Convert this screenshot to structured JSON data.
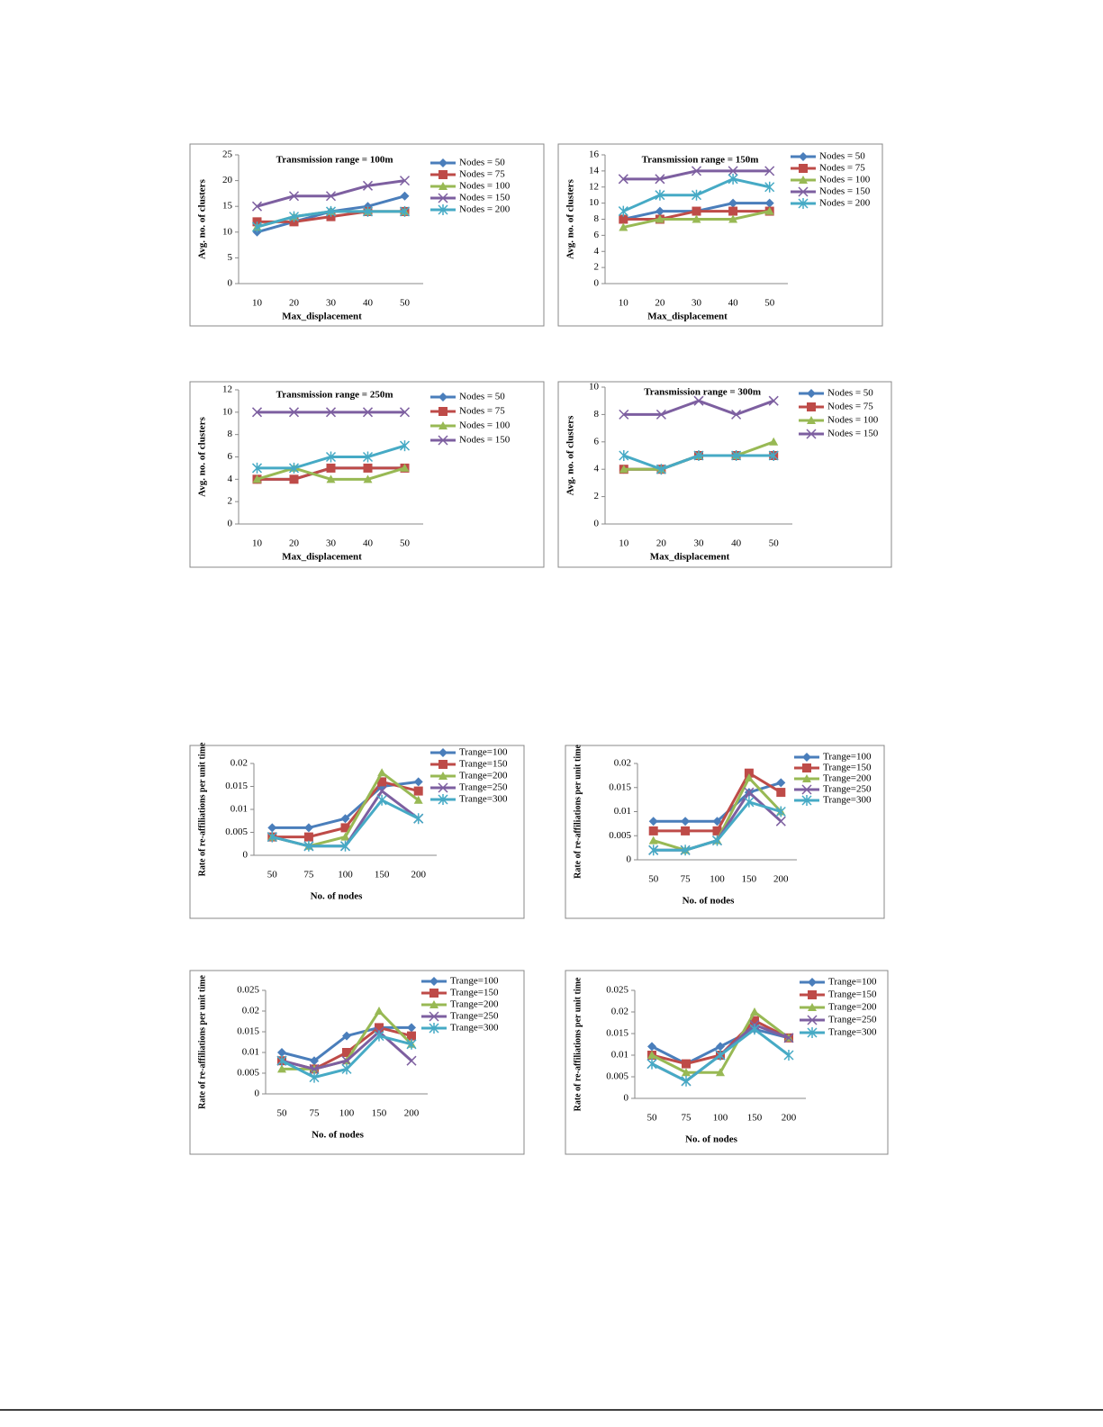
{
  "chart_data": [
    {
      "type": "line",
      "title": "Transmission range = 100m",
      "xlabel": "Max_displacement",
      "ylabel": "Avg. no. of clusters",
      "categories": [
        "10",
        "20",
        "30",
        "40",
        "50"
      ],
      "ylim": [
        0,
        25
      ],
      "yticks": [
        0,
        5,
        10,
        15,
        20,
        25
      ],
      "series": [
        {
          "name": "Nodes = 50",
          "color": "#4a7ebb",
          "values": [
            10,
            12,
            14,
            15,
            17
          ]
        },
        {
          "name": "Nodes = 75",
          "color": "#be4b48",
          "values": [
            12,
            12,
            13,
            14,
            14
          ]
        },
        {
          "name": "Nodes = 100",
          "color": "#98b954",
          "values": [
            11,
            13,
            14,
            14,
            14
          ]
        },
        {
          "name": "Nodes = 150",
          "color": "#7d5fa0",
          "values": [
            15,
            17,
            17,
            19,
            20
          ]
        },
        {
          "name": "Nodes = 200",
          "color": "#46aac5",
          "values": [
            11,
            13,
            14,
            14,
            14
          ]
        }
      ]
    },
    {
      "type": "line",
      "title": "Transmission range = 150m",
      "xlabel": "Max_displacement",
      "ylabel": "Avg. no. of clusters",
      "categories": [
        "10",
        "20",
        "30",
        "40",
        "50"
      ],
      "ylim": [
        0,
        16
      ],
      "yticks": [
        0,
        2,
        4,
        6,
        8,
        10,
        12,
        14,
        16
      ],
      "series": [
        {
          "name": "Nodes = 50",
          "color": "#4a7ebb",
          "values": [
            8,
            9,
            9,
            10,
            10
          ]
        },
        {
          "name": "Nodes = 75",
          "color": "#be4b48",
          "values": [
            8,
            8,
            9,
            9,
            9
          ]
        },
        {
          "name": "Nodes = 100",
          "color": "#98b954",
          "values": [
            7,
            8,
            8,
            8,
            9
          ]
        },
        {
          "name": "Nodes = 150",
          "color": "#7d5fa0",
          "values": [
            13,
            13,
            14,
            14,
            14
          ]
        },
        {
          "name": "Nodes = 200",
          "color": "#46aac5",
          "values": [
            9,
            11,
            11,
            13,
            12
          ]
        }
      ]
    },
    {
      "type": "line",
      "title": "Transmission range = 250m",
      "xlabel": "Max_displacement",
      "ylabel": "Avg. no. of clusters",
      "categories": [
        "10",
        "20",
        "30",
        "40",
        "50"
      ],
      "ylim": [
        0,
        12
      ],
      "yticks": [
        0,
        2,
        4,
        6,
        8,
        10,
        12
      ],
      "series": [
        {
          "name": "Nodes = 50",
          "color": "#4a7ebb",
          "values": [
            4,
            4,
            5,
            5,
            5
          ]
        },
        {
          "name": "Nodes = 75",
          "color": "#be4b48",
          "values": [
            4,
            4,
            5,
            5,
            5
          ]
        },
        {
          "name": "Nodes = 100",
          "color": "#98b954",
          "values": [
            4,
            5,
            4,
            4,
            5
          ]
        },
        {
          "name": "Nodes = 150",
          "color": "#7d5fa0",
          "values": [
            10,
            10,
            10,
            10,
            10
          ]
        },
        {
          "name": null,
          "color": "#46aac5",
          "values": [
            5,
            5,
            6,
            6,
            7
          ]
        }
      ]
    },
    {
      "type": "line",
      "title": "Transmission range = 300m",
      "xlabel": "Max_displacement",
      "ylabel": "Avg. no. of clusters",
      "categories": [
        "10",
        "20",
        "30",
        "40",
        "50"
      ],
      "ylim": [
        0,
        10
      ],
      "yticks": [
        0,
        2,
        4,
        6,
        8,
        10
      ],
      "series": [
        {
          "name": "Nodes = 50",
          "color": "#4a7ebb",
          "values": [
            4,
            4,
            5,
            5,
            5
          ]
        },
        {
          "name": "Nodes = 75",
          "color": "#be4b48",
          "values": [
            4,
            4,
            5,
            5,
            5
          ]
        },
        {
          "name": "Nodes = 100",
          "color": "#98b954",
          "values": [
            4,
            4,
            5,
            5,
            6
          ]
        },
        {
          "name": "Nodes = 150",
          "color": "#7d5fa0",
          "values": [
            8,
            8,
            9,
            8,
            9
          ]
        },
        {
          "name": null,
          "color": "#46aac5",
          "values": [
            5,
            4,
            5,
            5,
            5
          ]
        }
      ]
    },
    {
      "type": "line",
      "xlabel": "No. of nodes",
      "ylabel": "Rate of re-affiliations per unit time",
      "categories": [
        "50",
        "75",
        "100",
        "150",
        "200"
      ],
      "ylim": [
        0,
        0.02
      ],
      "yticks": [
        0,
        0.005,
        0.01,
        0.015,
        0.02
      ],
      "series": [
        {
          "name": "Trange=100",
          "color": "#4a7ebb",
          "values": [
            0.006,
            0.006,
            0.008,
            0.015,
            0.016
          ]
        },
        {
          "name": "Trange=150",
          "color": "#be4b48",
          "values": [
            0.004,
            0.004,
            0.006,
            0.016,
            0.014
          ]
        },
        {
          "name": "Trange=200",
          "color": "#98b954",
          "values": [
            0.004,
            0.002,
            0.004,
            0.018,
            0.012
          ]
        },
        {
          "name": "Trange=250",
          "color": "#7d5fa0",
          "values": [
            0.004,
            0.002,
            0.002,
            0.014,
            0.008
          ]
        },
        {
          "name": "Trange=300",
          "color": "#46aac5",
          "values": [
            0.004,
            0.002,
            0.002,
            0.012,
            0.008
          ]
        }
      ]
    },
    {
      "type": "line",
      "xlabel": "No. of nodes",
      "ylabel": "Rate of re-affiliations per unit time",
      "categories": [
        "50",
        "75",
        "100",
        "150",
        "200"
      ],
      "ylim": [
        0,
        0.02
      ],
      "yticks": [
        0,
        0.005,
        0.01,
        0.015,
        0.02
      ],
      "series": [
        {
          "name": "Trange=100",
          "color": "#4a7ebb",
          "values": [
            0.008,
            0.008,
            0.008,
            0.014,
            0.016
          ]
        },
        {
          "name": "Trange=150",
          "color": "#be4b48",
          "values": [
            0.006,
            0.006,
            0.006,
            0.018,
            0.014
          ]
        },
        {
          "name": "Trange=200",
          "color": "#98b954",
          "values": [
            0.004,
            0.002,
            0.004,
            0.017,
            0.01
          ]
        },
        {
          "name": "Trange=250",
          "color": "#7d5fa0",
          "values": [
            0.002,
            0.002,
            0.004,
            0.014,
            0.008
          ]
        },
        {
          "name": "Trange=300",
          "color": "#46aac5",
          "values": [
            0.002,
            0.002,
            0.004,
            0.012,
            0.01
          ]
        }
      ]
    },
    {
      "type": "line",
      "xlabel": "No. of nodes",
      "ylabel": "Rate of re-affiliations per unit time",
      "categories": [
        "50",
        "75",
        "100",
        "150",
        "200"
      ],
      "ylim": [
        0,
        0.025
      ],
      "yticks": [
        0,
        0.005,
        0.01,
        0.015,
        0.02,
        0.025
      ],
      "series": [
        {
          "name": "Trange=100",
          "color": "#4a7ebb",
          "values": [
            0.01,
            0.008,
            0.014,
            0.016,
            0.016
          ]
        },
        {
          "name": "Trange=150",
          "color": "#be4b48",
          "values": [
            0.008,
            0.006,
            0.01,
            0.016,
            0.014
          ]
        },
        {
          "name": "Trange=200",
          "color": "#98b954",
          "values": [
            0.006,
            0.006,
            0.008,
            0.02,
            0.012
          ]
        },
        {
          "name": "Trange=250",
          "color": "#7d5fa0",
          "values": [
            0.008,
            0.006,
            0.008,
            0.015,
            0.008
          ]
        },
        {
          "name": "Trange=300",
          "color": "#46aac5",
          "values": [
            0.008,
            0.004,
            0.006,
            0.014,
            0.012
          ]
        }
      ]
    },
    {
      "type": "line",
      "xlabel": "No. of nodes",
      "ylabel": "Rate of re-affiliations per unit time",
      "categories": [
        "50",
        "75",
        "100",
        "150",
        "200"
      ],
      "ylim": [
        0,
        0.025
      ],
      "yticks": [
        0,
        0.005,
        0.01,
        0.015,
        0.02,
        0.025
      ],
      "series": [
        {
          "name": "Trange=100",
          "color": "#4a7ebb",
          "values": [
            0.012,
            0.008,
            0.012,
            0.016,
            0.014
          ]
        },
        {
          "name": "Trange=150",
          "color": "#be4b48",
          "values": [
            0.01,
            0.008,
            0.01,
            0.018,
            0.014
          ]
        },
        {
          "name": "Trange=200",
          "color": "#98b954",
          "values": [
            0.01,
            0.006,
            0.006,
            0.02,
            0.014
          ]
        },
        {
          "name": "Trange=250",
          "color": "#7d5fa0",
          "values": [
            0.008,
            0.004,
            0.01,
            0.017,
            0.014
          ]
        },
        {
          "name": "Trange=300",
          "color": "#46aac5",
          "values": [
            0.008,
            0.004,
            0.01,
            0.016,
            0.01
          ]
        }
      ]
    }
  ]
}
